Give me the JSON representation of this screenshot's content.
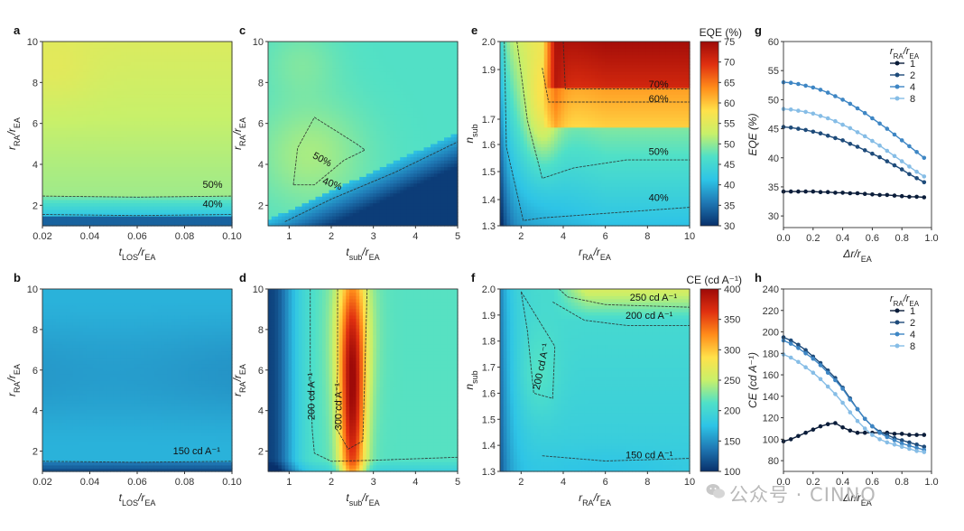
{
  "watermark": "公众号 · CINNO",
  "colors": {
    "stops": [
      "#08306b",
      "#1f78b4",
      "#2ec4e6",
      "#4fe0c8",
      "#c8f06a",
      "#ffe14a",
      "#ff8c1a",
      "#e03010",
      "#9e0a08"
    ],
    "series": [
      "#0b1d3a",
      "#1e4b7a",
      "#3e86c4",
      "#86bde6"
    ]
  },
  "chart_data": [
    {
      "id": "a",
      "type": "heatmap",
      "panel_label": "a",
      "x_label": {
        "main": "t",
        "sub": "LOS",
        "div": "/r",
        "sub2": "EA"
      },
      "y_label": {
        "main": "r",
        "sub": "RA",
        "div": "/r",
        "sub2": "EA"
      },
      "xlim": [
        0.02,
        0.1
      ],
      "ylim": [
        1,
        10
      ],
      "xticks": [
        0.02,
        0.04,
        0.06,
        0.08,
        0.1
      ],
      "xtick_labels": [
        "0.02",
        "0.04",
        "0.06",
        "0.08",
        "0.10"
      ],
      "yticks": [
        2,
        4,
        6,
        8,
        10
      ],
      "ytick_labels": [
        "2",
        "4",
        "6",
        "8",
        "10"
      ],
      "contour_labels": [
        "50%",
        "40%"
      ],
      "metric": "EQE",
      "vmin": 30,
      "vmax": 75
    },
    {
      "id": "b",
      "type": "heatmap",
      "panel_label": "b",
      "x_label": {
        "main": "t",
        "sub": "LOS",
        "div": "/r",
        "sub2": "EA"
      },
      "y_label": {
        "main": "r",
        "sub": "RA",
        "div": "/r",
        "sub2": "EA"
      },
      "xlim": [
        0.02,
        0.1
      ],
      "ylim": [
        1,
        10
      ],
      "xticks": [
        0.02,
        0.04,
        0.06,
        0.08,
        0.1
      ],
      "xtick_labels": [
        "0.02",
        "0.04",
        "0.06",
        "0.08",
        "0.10"
      ],
      "yticks": [
        2,
        4,
        6,
        8,
        10
      ],
      "ytick_labels": [
        "2",
        "4",
        "6",
        "8",
        "10"
      ],
      "contour_labels": [
        "150 cd A⁻¹"
      ],
      "metric": "CE",
      "vmin": 100,
      "vmax": 400
    },
    {
      "id": "c",
      "type": "heatmap",
      "panel_label": "c",
      "x_label": {
        "main": "t",
        "sub": "sub",
        "div": "/r",
        "sub2": "EA"
      },
      "y_label": {
        "main": "r",
        "sub": "RA",
        "div": "/r",
        "sub2": "EA"
      },
      "xlim": [
        0.5,
        5
      ],
      "ylim": [
        1,
        10
      ],
      "xticks": [
        1,
        2,
        3,
        4,
        5
      ],
      "xtick_labels": [
        "1",
        "2",
        "3",
        "4",
        "5"
      ],
      "yticks": [
        2,
        4,
        6,
        8,
        10
      ],
      "ytick_labels": [
        "2",
        "4",
        "6",
        "8",
        "10"
      ],
      "contour_labels": [
        "50%",
        "40%"
      ],
      "metric": "EQE",
      "vmin": 30,
      "vmax": 75
    },
    {
      "id": "d",
      "type": "heatmap",
      "panel_label": "d",
      "x_label": {
        "main": "t",
        "sub": "sub",
        "div": "/r",
        "sub2": "EA"
      },
      "y_label": {
        "main": "r",
        "sub": "RA",
        "div": "/r",
        "sub2": "EA"
      },
      "xlim": [
        0.5,
        5
      ],
      "ylim": [
        1,
        10
      ],
      "xticks": [
        1,
        2,
        3,
        4,
        5
      ],
      "xtick_labels": [
        "1",
        "2",
        "3",
        "4",
        "5"
      ],
      "yticks": [
        2,
        4,
        6,
        8,
        10
      ],
      "ytick_labels": [
        "2",
        "4",
        "6",
        "8",
        "10"
      ],
      "contour_labels": [
        "200 cd A⁻¹",
        "300 cd A⁻¹"
      ],
      "metric": "CE",
      "vmin": 100,
      "vmax": 400
    },
    {
      "id": "e",
      "type": "heatmap",
      "panel_label": "e",
      "x_label": {
        "main": "r",
        "sub": "RA",
        "div": "/r",
        "sub2": "EA"
      },
      "y_label": {
        "main": "n",
        "sub": "sub",
        "div": "",
        "sub2": ""
      },
      "xlim": [
        1,
        10
      ],
      "ylim": [
        1.3,
        2.0
      ],
      "xticks": [
        2,
        4,
        6,
        8,
        10
      ],
      "xtick_labels": [
        "2",
        "4",
        "6",
        "8",
        "10"
      ],
      "yticks": [
        1.3,
        1.4,
        1.5,
        1.6,
        1.7,
        1.9,
        2.0
      ],
      "ytick_labels": [
        "1.3",
        "1.4",
        "1.5",
        "1.6",
        "1.7",
        "1.9",
        "2.0"
      ],
      "contour_labels": [
        "70%",
        "60%",
        "50%",
        "40%"
      ],
      "metric": "EQE",
      "vmin": 30,
      "vmax": 75,
      "colorbar": {
        "title": "EQE (%)",
        "ticks": [
          30,
          35,
          40,
          45,
          50,
          55,
          60,
          65,
          70,
          75
        ],
        "tick_labels": [
          "30",
          "35",
          "40",
          "45",
          "50",
          "55",
          "60",
          "65",
          "70",
          "75"
        ]
      }
    },
    {
      "id": "f",
      "type": "heatmap",
      "panel_label": "f",
      "x_label": {
        "main": "r",
        "sub": "RA",
        "div": "/r",
        "sub2": "EA"
      },
      "y_label": {
        "main": "n",
        "sub": "sub",
        "div": "",
        "sub2": ""
      },
      "xlim": [
        1,
        10
      ],
      "ylim": [
        1.3,
        2.0
      ],
      "xticks": [
        2,
        4,
        6,
        8,
        10
      ],
      "xtick_labels": [
        "2",
        "4",
        "6",
        "8",
        "10"
      ],
      "yticks": [
        1.3,
        1.4,
        1.5,
        1.6,
        1.7,
        1.8,
        1.9,
        2.0
      ],
      "ytick_labels": [
        "1.3",
        "1.4",
        "1.5",
        "1.6",
        "1.7",
        "1.8",
        "1.9",
        "2.0"
      ],
      "contour_labels": [
        "250 cd A⁻¹",
        "200 cd A⁻¹",
        "200 cd A⁻¹",
        "150 cd A⁻¹"
      ],
      "metric": "CE",
      "vmin": 100,
      "vmax": 400,
      "colorbar": {
        "title": "CE (cd A⁻¹)",
        "ticks": [
          100,
          150,
          200,
          250,
          300,
          350,
          400
        ],
        "tick_labels": [
          "100",
          "150",
          "200",
          "250",
          "300",
          "350",
          "400"
        ]
      }
    },
    {
      "id": "g",
      "type": "line",
      "panel_label": "g",
      "x_label": {
        "main": "Δr",
        "sub": "",
        "div": "/r",
        "sub2": "EA"
      },
      "y_label": {
        "main": "EQE (%)",
        "sub": "",
        "div": "",
        "sub2": ""
      },
      "xlim": [
        0,
        1.0
      ],
      "ylim": [
        28,
        60
      ],
      "xticks": [
        0,
        0.2,
        0.4,
        0.6,
        0.8,
        1.0
      ],
      "xtick_labels": [
        "0.0",
        "0.2",
        "0.4",
        "0.6",
        "0.8",
        "1.0"
      ],
      "yticks": [
        30,
        35,
        40,
        45,
        50,
        55,
        60
      ],
      "ytick_labels": [
        "30",
        "35",
        "40",
        "45",
        "50",
        "55",
        "60"
      ],
      "legend": {
        "title": "r_RA/r_EA",
        "position": "top-right"
      },
      "x": [
        0,
        0.05,
        0.1,
        0.15,
        0.2,
        0.25,
        0.3,
        0.35,
        0.4,
        0.45,
        0.5,
        0.55,
        0.6,
        0.65,
        0.7,
        0.75,
        0.8,
        0.85,
        0.9,
        0.95
      ],
      "series": [
        {
          "name": "1",
          "values": [
            34.2,
            34.2,
            34.2,
            34.2,
            34.2,
            34.1,
            34.1,
            34.0,
            34.0,
            33.9,
            33.9,
            33.8,
            33.7,
            33.6,
            33.6,
            33.5,
            33.4,
            33.3,
            33.3,
            33.2
          ]
        },
        {
          "name": "2",
          "values": [
            45.3,
            45.2,
            45.0,
            44.8,
            44.5,
            44.2,
            43.8,
            43.4,
            43.0,
            42.4,
            41.9,
            41.3,
            40.7,
            40.1,
            39.4,
            38.7,
            38.0,
            37.2,
            36.5,
            35.8
          ]
        },
        {
          "name": "4",
          "values": [
            53.0,
            52.9,
            52.7,
            52.4,
            52.1,
            51.7,
            51.2,
            50.6,
            50.0,
            49.3,
            48.5,
            47.7,
            46.8,
            45.9,
            45.0,
            44.0,
            43.0,
            42.0,
            41.0,
            40.0
          ]
        },
        {
          "name": "8",
          "values": [
            48.4,
            48.3,
            48.1,
            47.9,
            47.6,
            47.2,
            46.8,
            46.3,
            45.7,
            45.1,
            44.4,
            43.7,
            42.9,
            42.1,
            41.2,
            40.3,
            39.4,
            38.5,
            37.6,
            36.8
          ]
        }
      ]
    },
    {
      "id": "h",
      "type": "line",
      "panel_label": "h",
      "x_label": {
        "main": "Δr",
        "sub": "",
        "div": "/r",
        "sub2": "EA"
      },
      "y_label": {
        "main": "CE (cd A⁻¹)",
        "sub": "",
        "div": "",
        "sub2": ""
      },
      "xlim": [
        0,
        1.0
      ],
      "ylim": [
        70,
        240
      ],
      "xticks": [
        0,
        0.2,
        0.4,
        0.6,
        0.8,
        1.0
      ],
      "xtick_labels": [
        "0.0",
        "0.2",
        "0.4",
        "0.6",
        "0.8",
        "1.0"
      ],
      "yticks": [
        80,
        100,
        120,
        140,
        160,
        180,
        200,
        220,
        240
      ],
      "ytick_labels": [
        "80",
        "100",
        "120",
        "140",
        "160",
        "180",
        "200",
        "220",
        "240"
      ],
      "legend": {
        "title": "r_RA/r_EA",
        "position": "top-right"
      },
      "x": [
        0,
        0.05,
        0.1,
        0.15,
        0.2,
        0.25,
        0.3,
        0.35,
        0.4,
        0.45,
        0.5,
        0.55,
        0.6,
        0.65,
        0.7,
        0.75,
        0.8,
        0.85,
        0.9,
        0.95
      ],
      "series": [
        {
          "name": "1",
          "values": [
            98,
            100,
            103,
            106,
            109,
            112,
            114,
            115,
            111,
            108,
            106,
            106,
            106,
            106,
            106,
            105,
            105,
            104,
            104,
            104
          ]
        },
        {
          "name": "2",
          "values": [
            195,
            192,
            188,
            183,
            177,
            171,
            164,
            157,
            148,
            138,
            128,
            119,
            112,
            107,
            104,
            101,
            99,
            97,
            95,
            93
          ]
        },
        {
          "name": "4",
          "values": [
            192,
            189,
            185,
            180,
            175,
            169,
            162,
            155,
            147,
            137,
            128,
            119,
            112,
            106,
            102,
            99,
            96,
            94,
            92,
            90
          ]
        },
        {
          "name": "8",
          "values": [
            179,
            176,
            172,
            167,
            162,
            156,
            149,
            142,
            134,
            125,
            117,
            110,
            104,
            100,
            97,
            95,
            93,
            91,
            89,
            88
          ]
        }
      ]
    }
  ]
}
